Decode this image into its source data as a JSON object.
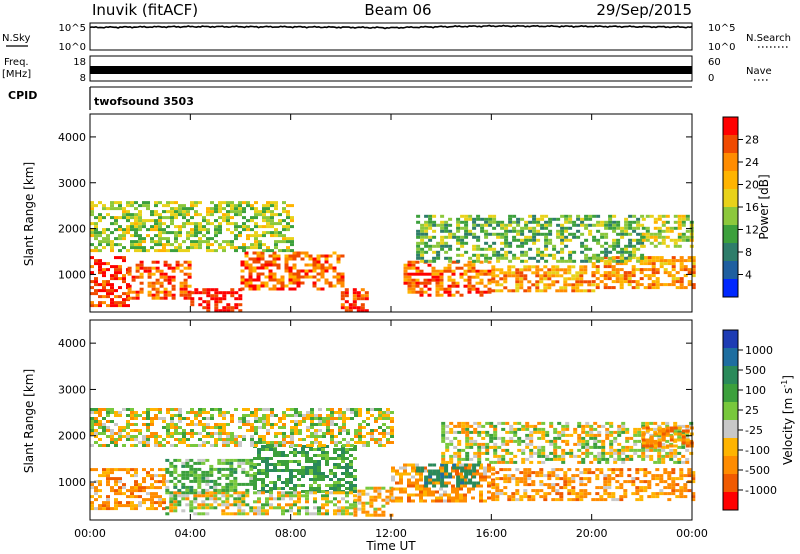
{
  "header": {
    "station": "Inuvik (fitACF)",
    "beam": "Beam 06",
    "date": "29/Sep/2015"
  },
  "strips": {
    "nsky_label": "N.Sky",
    "nsky_ticks": [
      "10^5",
      "10^0"
    ],
    "nsearch_label": "N.Search",
    "nsearch_ticks": [
      "10^5",
      "10^0"
    ],
    "freq_label": "Freq.",
    "freq_unit": "[MHz]",
    "freq_ticks": [
      "18",
      "8"
    ],
    "nave_label": "Nave",
    "nave_ticks": [
      "60",
      "0"
    ],
    "cpid_label": "CPID",
    "cpid_value": "twofsound 3503"
  },
  "axes": {
    "ylabel": "Slant Range [km]",
    "yticks": [
      "4000",
      "3000",
      "2000",
      "1000"
    ],
    "xlabel": "Time UT",
    "xticks": [
      "00:00",
      "04:00",
      "08:00",
      "12:00",
      "16:00",
      "20:00",
      "00:00"
    ]
  },
  "colorbars": {
    "power": {
      "label": "Power [dB]",
      "ticks": [
        "28",
        "24",
        "20",
        "16",
        "12",
        "8",
        "4"
      ],
      "colors": [
        "#ff0000",
        "#f04a00",
        "#ff8c00",
        "#ffb400",
        "#e8d21a",
        "#8cc83c",
        "#3ca03c",
        "#2e7d6a",
        "#1f5fa0",
        "#0028ff"
      ]
    },
    "velocity": {
      "label": "Velocity [m s",
      "label_sup": "-1",
      "label_end": "]",
      "ticks": [
        "1000",
        "500",
        "100",
        "25",
        "-25",
        "-100",
        "-500",
        "-1000"
      ],
      "colors": [
        "#1e3cb4",
        "#1e6ea0",
        "#2a8a5a",
        "#3ca03c",
        "#78c83c",
        "#c8c8c8",
        "#ffb400",
        "#ff8c00",
        "#f05a00",
        "#ff0000"
      ]
    }
  },
  "chart_data": [
    {
      "type": "line",
      "name": "N.Sky / N.Search",
      "x": [
        "00:00",
        "04:00",
        "08:00",
        "12:00",
        "16:00",
        "20:00",
        "24:00"
      ],
      "y": [
        30000,
        45000,
        40000,
        25000,
        60000,
        50000,
        35000
      ],
      "ylim": [
        1,
        100000
      ],
      "yscale": "log"
    },
    {
      "type": "line",
      "name": "Freq. / Nave",
      "x": [
        "00:00",
        "04:00",
        "08:00",
        "12:00",
        "16:00",
        "20:00",
        "24:00"
      ],
      "y": [
        10.5,
        10.5,
        10.5,
        10.5,
        10.5,
        10.5,
        10.5
      ],
      "ylim": [
        8,
        18
      ]
    },
    {
      "type": "heatmap",
      "title": "Power [dB]",
      "xlabel": "Time UT",
      "ylabel": "Slant Range [km]",
      "xlim": [
        0,
        24
      ],
      "ylim": [
        180,
        4500
      ],
      "zlim": [
        0,
        30
      ],
      "regions": [
        {
          "t0": 0.0,
          "t1": 1.5,
          "r0": 350,
          "r1": 1400,
          "value": 27
        },
        {
          "t0": 1.5,
          "t1": 4.0,
          "r0": 500,
          "r1": 1300,
          "value": 25
        },
        {
          "t0": 4.0,
          "t1": 6.0,
          "r0": 200,
          "r1": 700,
          "value": 29
        },
        {
          "t0": 6.0,
          "t1": 10.0,
          "r0": 650,
          "r1": 1500,
          "value": 24
        },
        {
          "t0": 10.0,
          "t1": 11.0,
          "r0": 200,
          "r1": 700,
          "value": 28
        },
        {
          "t0": 12.5,
          "t1": 16.0,
          "r0": 550,
          "r1": 1300,
          "value": 24
        },
        {
          "t0": 16.0,
          "t1": 20.0,
          "r0": 650,
          "r1": 1200,
          "value": 21
        },
        {
          "t0": 20.0,
          "t1": 24.0,
          "r0": 700,
          "r1": 1400,
          "value": 22
        },
        {
          "t0": 0.0,
          "t1": 8.0,
          "r0": 1500,
          "r1": 2600,
          "value": 14
        },
        {
          "t0": 13.0,
          "t1": 22.0,
          "r0": 1300,
          "r1": 2300,
          "value": 12
        },
        {
          "t0": 22.0,
          "t1": 24.0,
          "r0": 1600,
          "r1": 2300,
          "value": 16
        }
      ]
    },
    {
      "type": "heatmap",
      "title": "Velocity [m s-1]",
      "xlabel": "Time UT",
      "ylabel": "Slant Range [km]",
      "xlim": [
        0,
        24
      ],
      "ylim": [
        180,
        4500
      ],
      "zlim": [
        -1000,
        1000
      ],
      "regions": [
        {
          "t0": 0.0,
          "t1": 3.0,
          "r0": 400,
          "r1": 1300,
          "value": -150
        },
        {
          "t0": 3.0,
          "t1": 6.5,
          "r0": 300,
          "r1": 800,
          "value": 0
        },
        {
          "t0": 3.0,
          "t1": 6.5,
          "r0": 800,
          "r1": 1500,
          "value": 150
        },
        {
          "t0": 6.5,
          "t1": 10.5,
          "r0": 800,
          "r1": 1800,
          "value": 200
        },
        {
          "t0": 6.5,
          "t1": 10.5,
          "r0": 300,
          "r1": 800,
          "value": 0
        },
        {
          "t0": 10.5,
          "t1": 12.0,
          "r0": 300,
          "r1": 900,
          "value": -80
        },
        {
          "t0": 12.0,
          "t1": 16.0,
          "r0": 600,
          "r1": 1400,
          "value": -150
        },
        {
          "t0": 13.0,
          "t1": 15.5,
          "r0": 900,
          "r1": 1400,
          "value": 400
        },
        {
          "t0": 16.0,
          "t1": 24.0,
          "r0": 600,
          "r1": 1300,
          "value": -150
        },
        {
          "t0": 0.0,
          "t1": 12.0,
          "r0": 1800,
          "r1": 2600,
          "value": 0
        },
        {
          "t0": 14.0,
          "t1": 24.0,
          "r0": 1400,
          "r1": 2300,
          "value": 0
        },
        {
          "t0": 22.0,
          "t1": 24.0,
          "r0": 1800,
          "r1": 2200,
          "value": -200
        }
      ]
    }
  ]
}
